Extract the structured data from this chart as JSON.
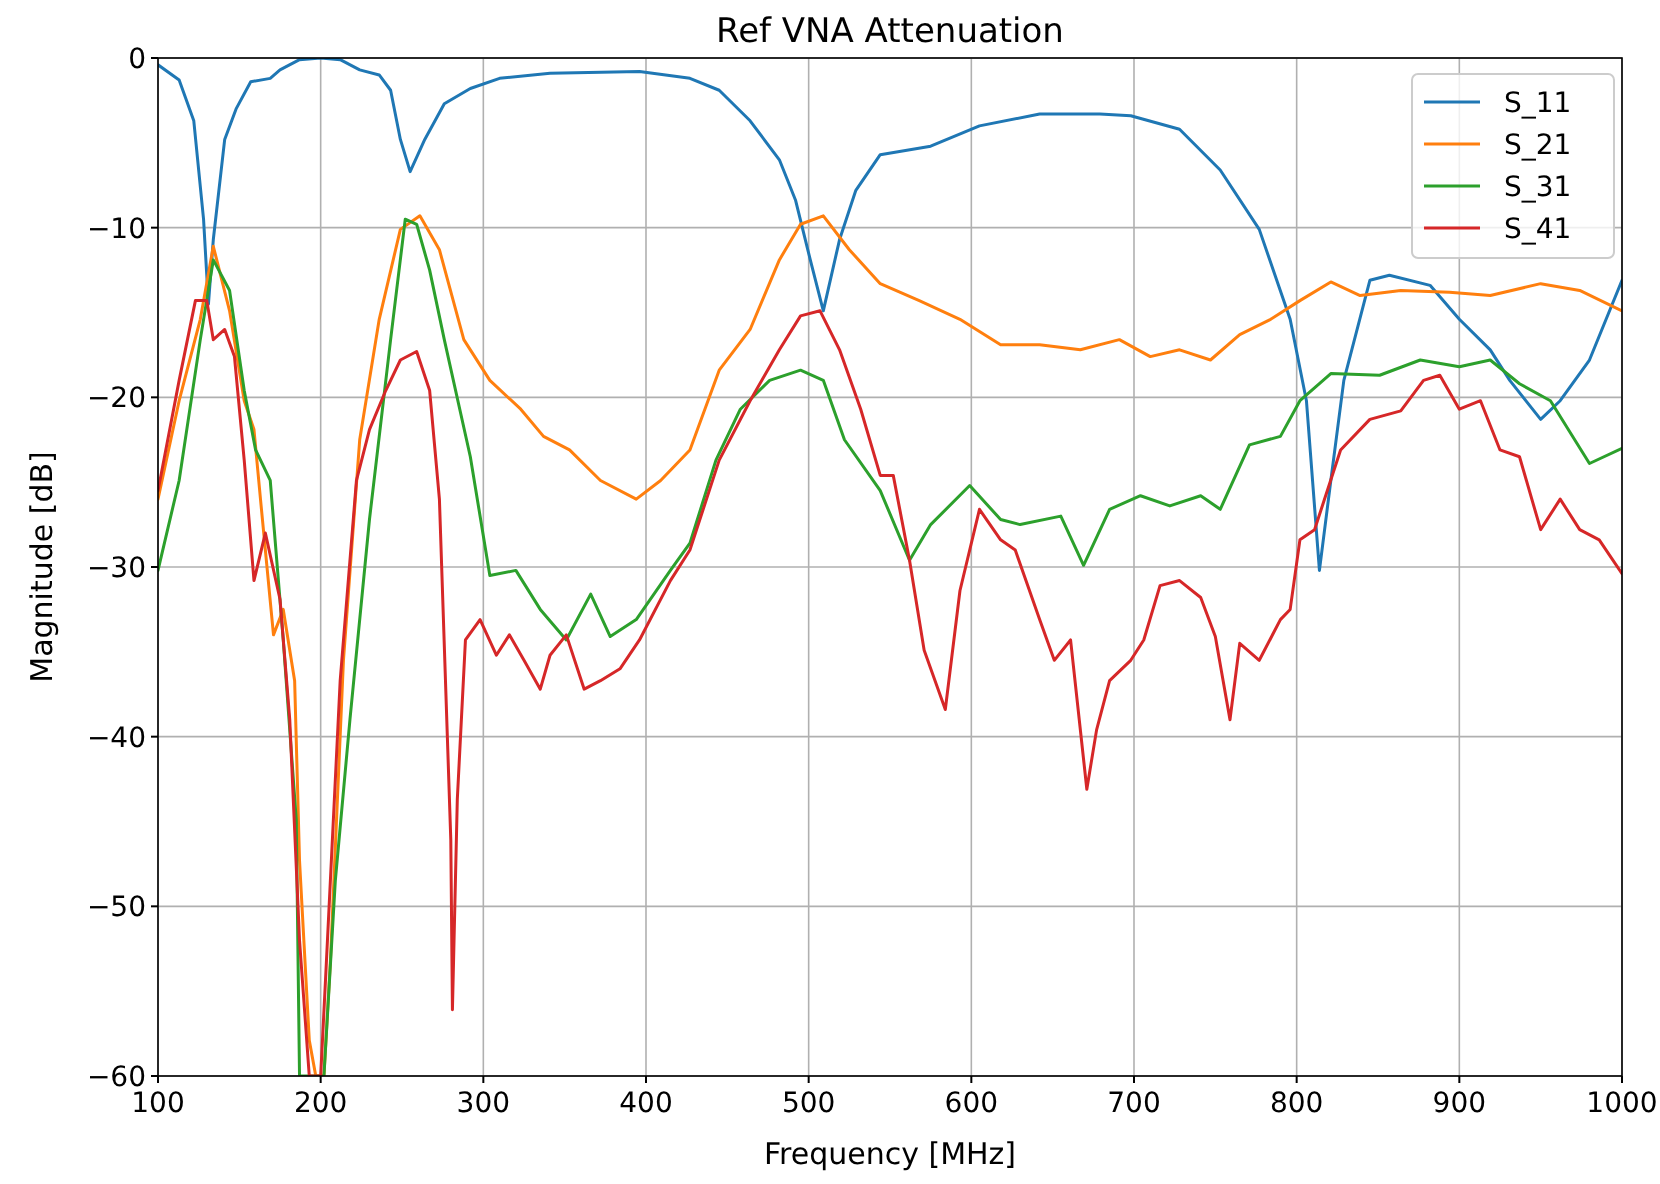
{
  "chart_data": {
    "type": "line",
    "title": "Ref VNA Attenuation",
    "xlabel": "Frequency [MHz]",
    "ylabel": "Magnitude [dB]",
    "xlim": [
      100,
      1000
    ],
    "xticks": [
      100,
      200,
      300,
      400,
      500,
      600,
      700,
      800,
      900,
      1000
    ],
    "ylim": [
      -60,
      0
    ],
    "yticks": [
      {
        "value": -60,
        "label": "−60"
      },
      {
        "value": -50,
        "label": "−50"
      },
      {
        "value": -40,
        "label": "−40"
      },
      {
        "value": -30,
        "label": "−30"
      },
      {
        "value": -20,
        "label": "−20"
      },
      {
        "value": -10,
        "label": "−10"
      },
      0
    ],
    "grid": true,
    "legend": "top right",
    "line_style": "solid",
    "series": [
      {
        "name": "S_11",
        "color": "#1f77b4",
        "x": [
          100,
          113,
          122,
          128,
          131,
          134,
          141,
          148,
          157,
          169,
          175,
          187,
          200,
          212,
          224,
          236,
          243,
          249,
          255,
          264,
          276,
          292,
          310,
          341,
          396,
          427,
          445,
          464,
          482,
          492,
          501,
          509,
          519,
          529,
          544,
          575,
          605,
          642,
          679,
          698,
          728,
          753,
          777,
          796,
          806,
          814,
          821,
          829,
          845,
          857,
          882,
          900,
          919,
          931,
          950,
          962,
          980,
          1000
        ],
        "values": [
          -0.4,
          -1.3,
          -3.7,
          -9.5,
          -14.5,
          -10.7,
          -4.8,
          -3,
          -1.4,
          -1.2,
          -0.7,
          -0.1,
          0,
          -0.1,
          -0.7,
          -1,
          -1.9,
          -4.8,
          -6.7,
          -4.8,
          -2.7,
          -1.8,
          -1.2,
          -0.9,
          -0.8,
          -1.2,
          -1.9,
          -3.7,
          -6,
          -8.4,
          -11.9,
          -14.9,
          -10.7,
          -7.8,
          -5.7,
          -5.2,
          -4,
          -3.3,
          -3.3,
          -3.4,
          -4.2,
          -6.6,
          -10.1,
          -15.4,
          -20.2,
          -30.2,
          -24.9,
          -19,
          -13.1,
          -12.8,
          -13.4,
          -15.4,
          -17.2,
          -19,
          -21.3,
          -20.2,
          -17.8,
          -13.1
        ]
      },
      {
        "name": "S_21",
        "color": "#ff7f0e",
        "x": [
          100,
          113,
          126,
          134,
          144,
          153,
          159,
          163,
          171,
          177,
          184,
          187,
          193,
          197,
          202,
          206,
          214,
          224,
          236,
          249,
          261,
          273,
          288,
          304,
          323,
          337,
          353,
          372,
          394,
          409,
          427,
          445,
          464,
          482,
          495,
          509,
          525,
          544,
          568,
          593,
          618,
          642,
          667,
          691,
          710,
          728,
          747,
          765,
          784,
          802,
          821,
          839,
          864,
          894,
          919,
          950,
          974,
          1000
        ],
        "values": [
          -26,
          -20.2,
          -15.4,
          -11.1,
          -14.9,
          -20.2,
          -21.9,
          -26,
          -34,
          -32.5,
          -36.7,
          -47.3,
          -57.9,
          -60,
          -60,
          -53.2,
          -35.5,
          -22.5,
          -15.4,
          -10.1,
          -9.3,
          -11.3,
          -16.6,
          -19,
          -20.7,
          -22.3,
          -23.1,
          -24.9,
          -26,
          -24.9,
          -23.1,
          -18.4,
          -16,
          -11.9,
          -9.8,
          -9.3,
          -11.3,
          -13.3,
          -14.3,
          -15.4,
          -16.9,
          -16.9,
          -17.2,
          -16.6,
          -17.6,
          -17.2,
          -17.8,
          -16.3,
          -15.4,
          -14.3,
          -13.2,
          -14,
          -13.7,
          -13.8,
          -14,
          -13.3,
          -13.7,
          -14.9
        ]
      },
      {
        "name": "S_31",
        "color": "#2ca02c",
        "x": [
          100,
          113,
          126,
          134,
          144,
          153,
          160,
          169,
          177,
          185,
          187,
          191,
          202,
          209,
          218,
          230,
          243,
          252,
          259,
          267,
          276,
          292,
          304,
          320,
          335,
          351,
          366,
          378,
          394,
          415,
          427,
          443,
          458,
          476,
          495,
          509,
          522,
          544,
          562,
          575,
          599,
          618,
          630,
          655,
          669,
          685,
          704,
          722,
          741,
          753,
          771,
          790,
          802,
          821,
          851,
          876,
          900,
          919,
          937,
          956,
          980,
          1000
        ],
        "values": [
          -30.2,
          -24.9,
          -16.6,
          -11.9,
          -13.7,
          -19.6,
          -23.1,
          -24.9,
          -34.3,
          -44.9,
          -60,
          -60,
          -60,
          -48.5,
          -39,
          -27.2,
          -16.6,
          -9.5,
          -9.8,
          -12.5,
          -16.6,
          -23.5,
          -30.5,
          -30.2,
          -32.5,
          -34.3,
          -31.6,
          -34.1,
          -33.1,
          -30.2,
          -28.6,
          -23.7,
          -20.7,
          -19,
          -18.4,
          -19,
          -22.5,
          -25.5,
          -29.6,
          -27.5,
          -25.2,
          -27.2,
          -27.5,
          -27,
          -29.9,
          -26.6,
          -25.8,
          -26.4,
          -25.8,
          -26.6,
          -22.8,
          -22.3,
          -20.2,
          -18.6,
          -18.7,
          -17.8,
          -18.2,
          -17.8,
          -19.2,
          -20.2,
          -23.9,
          -23
        ]
      },
      {
        "name": "S_41",
        "color": "#d62728",
        "x": [
          100,
          113,
          123,
          130,
          134,
          141,
          147,
          153,
          159,
          166,
          175,
          181,
          187,
          193,
          200,
          203,
          212,
          222,
          230,
          240,
          249,
          259,
          267,
          273,
          280,
          281,
          284,
          289,
          298,
          308,
          316,
          325,
          335,
          341,
          351,
          362,
          372,
          384,
          396,
          415,
          427,
          445,
          464,
          482,
          495,
          507,
          519,
          532,
          544,
          552,
          562,
          571,
          584,
          593,
          605,
          618,
          627,
          642,
          651,
          661,
          671,
          677,
          685,
          698,
          706,
          716,
          728,
          741,
          750,
          759,
          765,
          777,
          790,
          796,
          802,
          811,
          827,
          845,
          864,
          878,
          888,
          900,
          913,
          925,
          937,
          950,
          962,
          974,
          986,
          1000
        ],
        "values": [
          -25.5,
          -19,
          -14.3,
          -14.3,
          -16.6,
          -16,
          -17.6,
          -23.7,
          -30.8,
          -28,
          -31.9,
          -39,
          -52,
          -60,
          -60,
          -54.3,
          -36.7,
          -24.9,
          -21.9,
          -19.6,
          -17.8,
          -17.3,
          -19.6,
          -26,
          -46.1,
          -56.1,
          -43.7,
          -34.3,
          -33.1,
          -35.2,
          -34,
          -35.5,
          -37.2,
          -35.2,
          -34,
          -37.2,
          -36.7,
          -36,
          -34.3,
          -30.8,
          -29,
          -23.7,
          -20.2,
          -17.2,
          -15.2,
          -14.9,
          -17.2,
          -20.7,
          -24.6,
          -24.6,
          -29.6,
          -34.9,
          -38.4,
          -31.4,
          -26.6,
          -28.4,
          -29,
          -33.1,
          -35.5,
          -34.3,
          -43.1,
          -39.6,
          -36.7,
          -35.5,
          -34.3,
          -31.1,
          -30.8,
          -31.8,
          -34.1,
          -39,
          -34.5,
          -35.5,
          -33.1,
          -32.5,
          -28.4,
          -27.8,
          -23.1,
          -21.3,
          -20.8,
          -19,
          -18.7,
          -20.7,
          -20.2,
          -23.1,
          -23.5,
          -27.8,
          -26,
          -27.8,
          -28.4,
          -30.4
        ]
      }
    ]
  }
}
